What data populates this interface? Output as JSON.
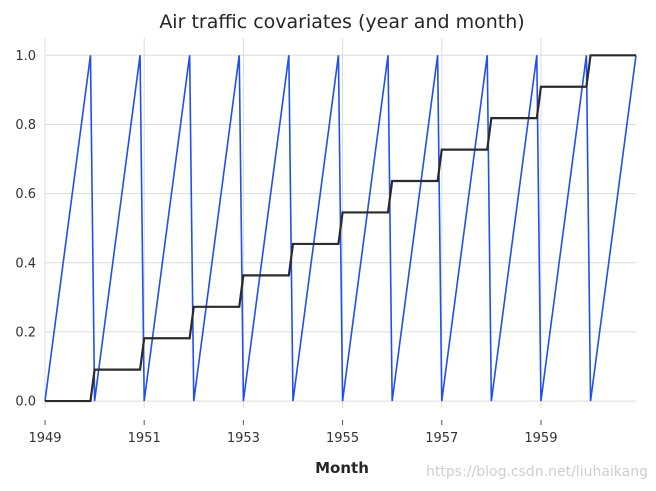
{
  "chart_data": {
    "type": "line",
    "title": "Air traffic covariates (year and month)",
    "xlabel": "Month",
    "ylabel": "",
    "xlim": [
      "1949-01",
      "1960-12"
    ],
    "ylim": [
      -0.02,
      1.05
    ],
    "grid": true,
    "legend": "none",
    "x_ticks": [
      "1949",
      "1951",
      "1953",
      "1955",
      "1957",
      "1959"
    ],
    "y_ticks": [
      "0.0",
      "0.2",
      "0.4",
      "0.6",
      "0.8",
      "1.0"
    ],
    "series": [
      {
        "color": "#1f4ff0",
        "x": [
          "1949-01",
          "1949-12",
          "1950-01",
          "1950-12",
          "1951-01",
          "1951-12",
          "1952-01",
          "1952-12",
          "1953-01",
          "1953-12",
          "1954-01",
          "1954-12",
          "1955-01",
          "1955-12",
          "1956-01",
          "1956-12",
          "1957-01",
          "1957-12",
          "1958-01",
          "1958-12",
          "1959-01",
          "1959-12",
          "1960-01",
          "1960-12"
        ],
        "values": [
          0,
          1,
          0,
          1,
          0,
          1,
          0,
          1,
          0,
          1,
          0,
          1,
          0,
          1,
          0,
          1,
          0,
          1,
          0,
          1,
          0,
          1,
          0,
          1
        ]
      },
      {
        "color": "#2b2b2b",
        "x": [
          "1949-01",
          "1949-12",
          "1950-01",
          "1950-12",
          "1951-01",
          "1951-12",
          "1952-01",
          "1952-12",
          "1953-01",
          "1953-12",
          "1954-01",
          "1954-12",
          "1955-01",
          "1955-12",
          "1956-01",
          "1956-12",
          "1957-01",
          "1957-12",
          "1958-01",
          "1958-12",
          "1959-01",
          "1959-12",
          "1960-01",
          "1960-12"
        ],
        "values": [
          0,
          0,
          0.0909,
          0.0909,
          0.1818,
          0.1818,
          0.2727,
          0.2727,
          0.3636,
          0.3636,
          0.4545,
          0.4545,
          0.5455,
          0.5455,
          0.6364,
          0.6364,
          0.7273,
          0.7273,
          0.8182,
          0.8182,
          0.9091,
          0.9091,
          1,
          1
        ]
      }
    ]
  },
  "watermark": "https://blog.csdn.net/liuhaikang"
}
